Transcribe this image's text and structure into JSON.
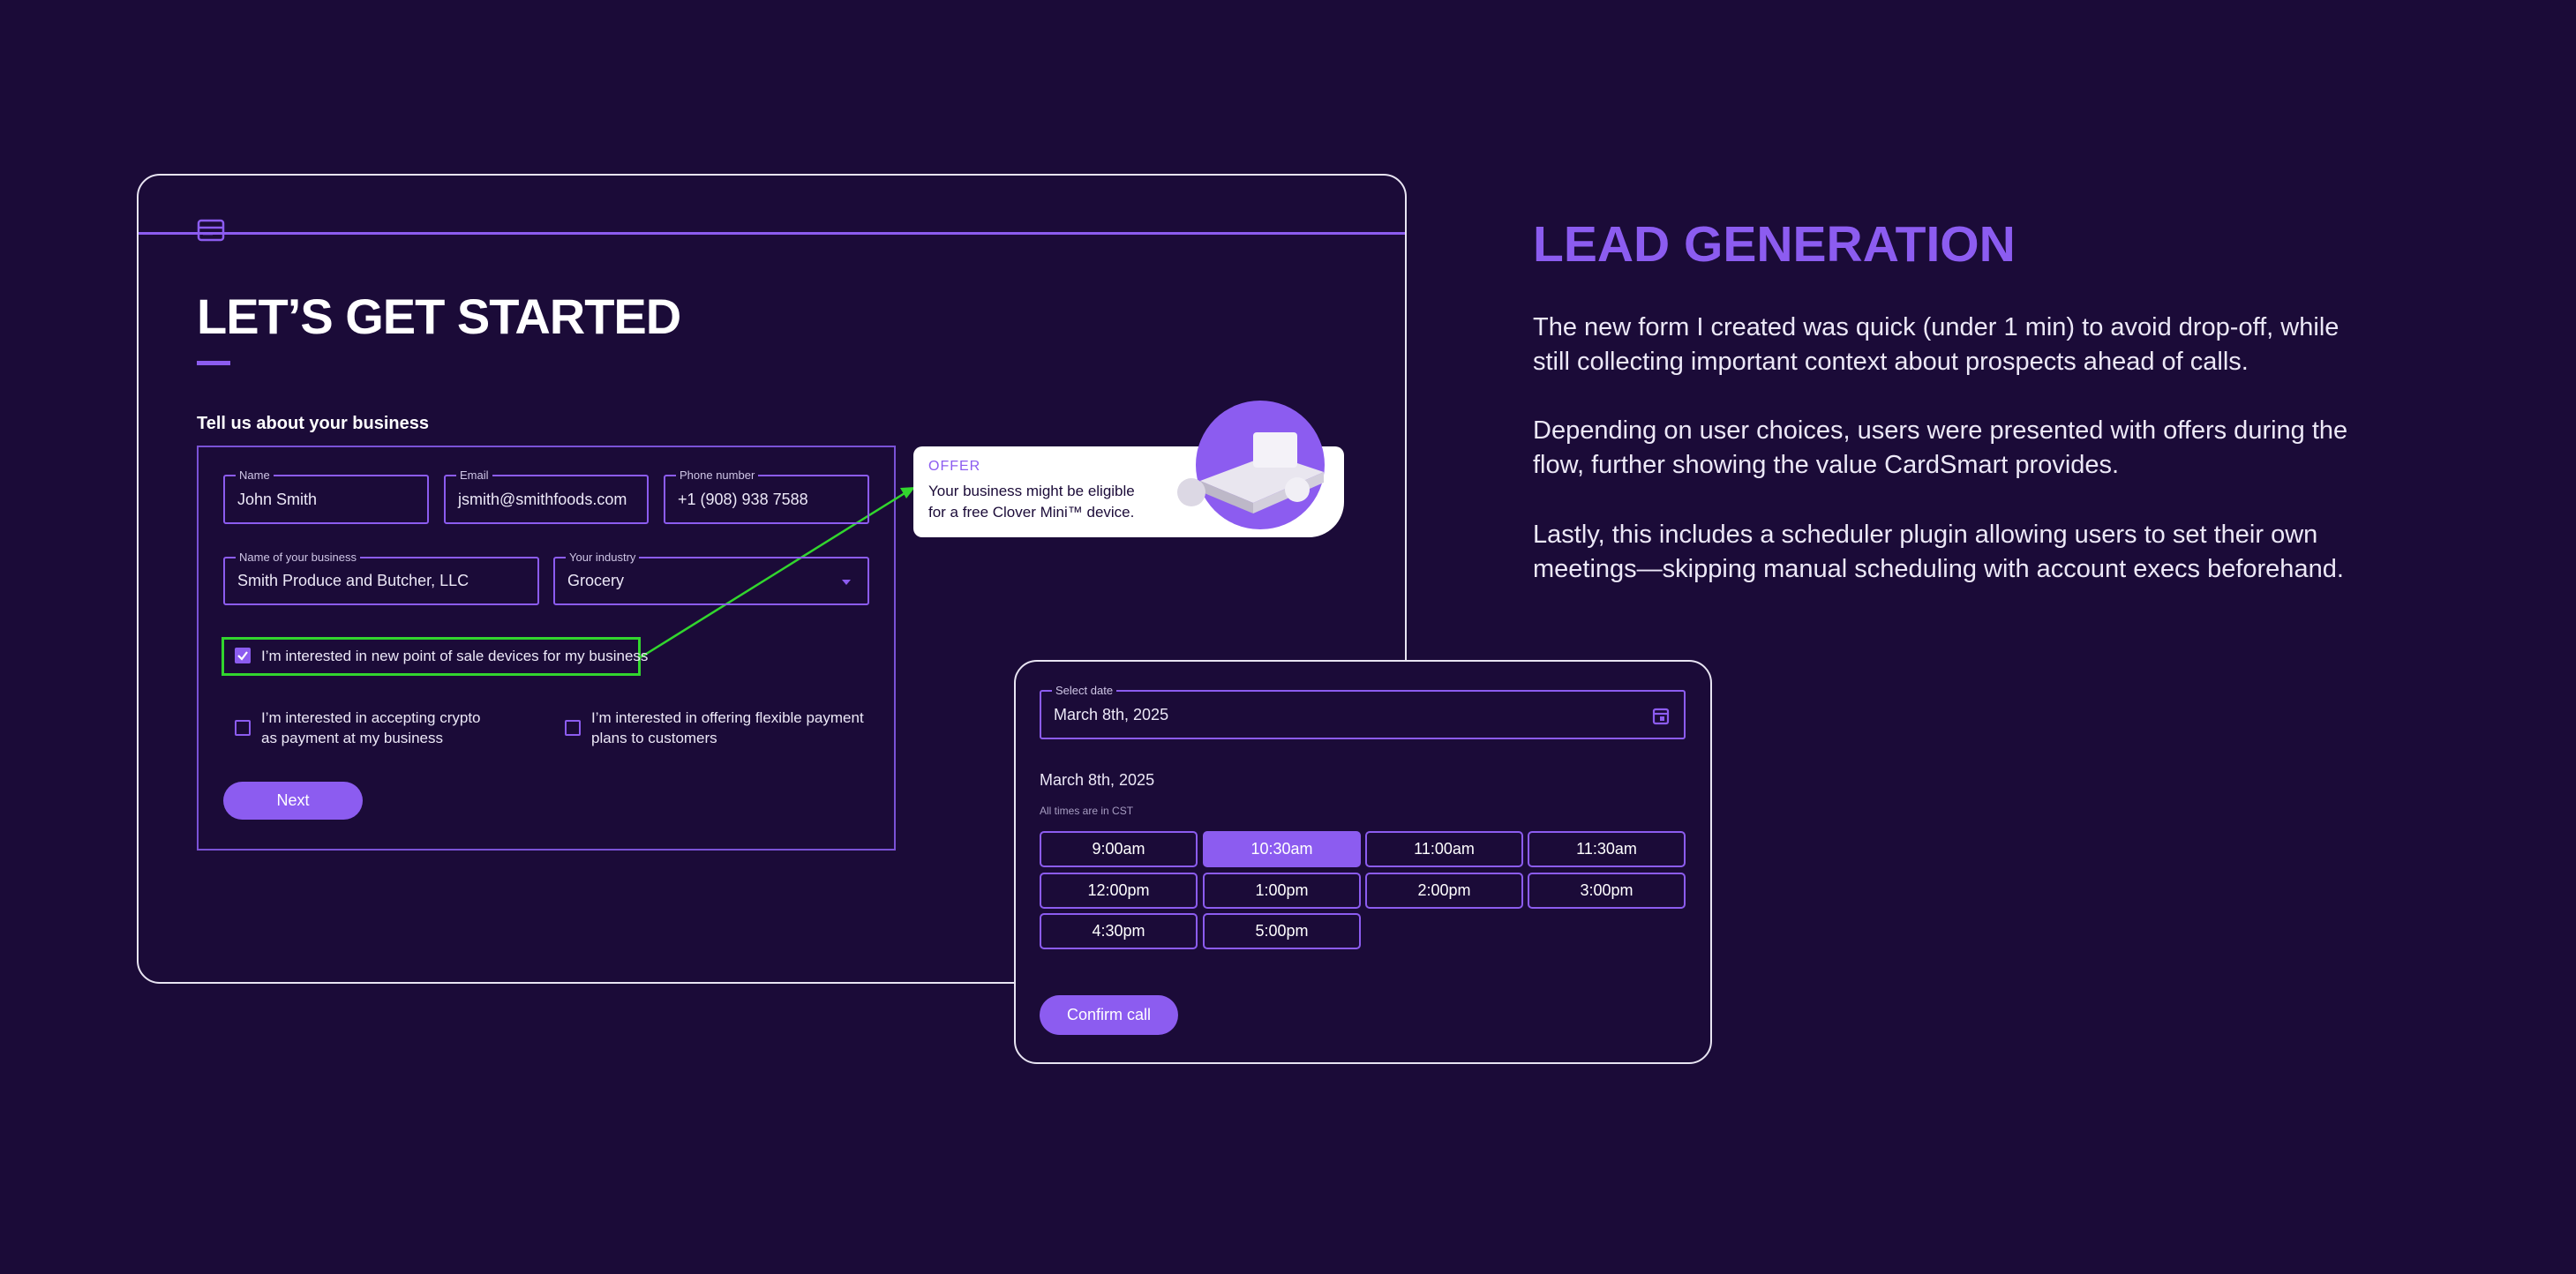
{
  "form_card": {
    "title": "LET’S GET STARTED",
    "section_label": "Tell us about your business",
    "fields": [
      {
        "label": "Name",
        "value": "John Smith"
      },
      {
        "label": "Email",
        "value": "jsmith@smithfoods.com"
      },
      {
        "label": "Phone number",
        "value": "+1 (908) 938 7588"
      },
      {
        "label": "Name of your business",
        "value": "Smith Produce and Butcher, LLC"
      },
      {
        "label": "Your industry",
        "value": "Grocery"
      }
    ],
    "checkboxes": [
      {
        "lines": [
          "I’m interested in new point of sale devices for my business"
        ],
        "checked": true,
        "highlighted": true
      },
      {
        "lines": [
          "I’m interested in accepting crypto",
          "as payment at my business"
        ],
        "checked": false,
        "highlighted": false
      },
      {
        "lines": [
          "I’m interested in offering flexible payment",
          "plans to customers"
        ],
        "checked": false,
        "highlighted": false
      }
    ],
    "button": "Next"
  },
  "offer": {
    "tag": "OFFER",
    "lines": [
      "Your business might be eligible",
      "for a free Clover Mini™ device."
    ]
  },
  "scheduler": {
    "date_label": "Select date",
    "date_value": "March 8th, 2025",
    "heading": "March 8th, 2025",
    "note": "All times are in CST",
    "slots": [
      "9:00am",
      "10:30am",
      "11:00am",
      "11:30am",
      "12:00pm",
      "1:00pm",
      "2:00pm",
      "3:00pm",
      "4:30pm",
      "5:00pm"
    ],
    "selected_slot": 1,
    "button": "Confirm call"
  },
  "side": {
    "title": "LEAD GENERATION",
    "paragraphs": [
      [
        "The new form I created was quick (under 1 min) to avoid drop-off, while",
        "still collecting important context about prospects ahead of calls."
      ],
      [
        "Depending on user choices, users were presented with offers during the",
        "flow, further showing the value CardSmart provides."
      ],
      [
        "Lastly, this includes a scheduler plugin allowing users to set their own",
        "meetings—skipping manual scheduling with account execs beforehand."
      ]
    ]
  }
}
